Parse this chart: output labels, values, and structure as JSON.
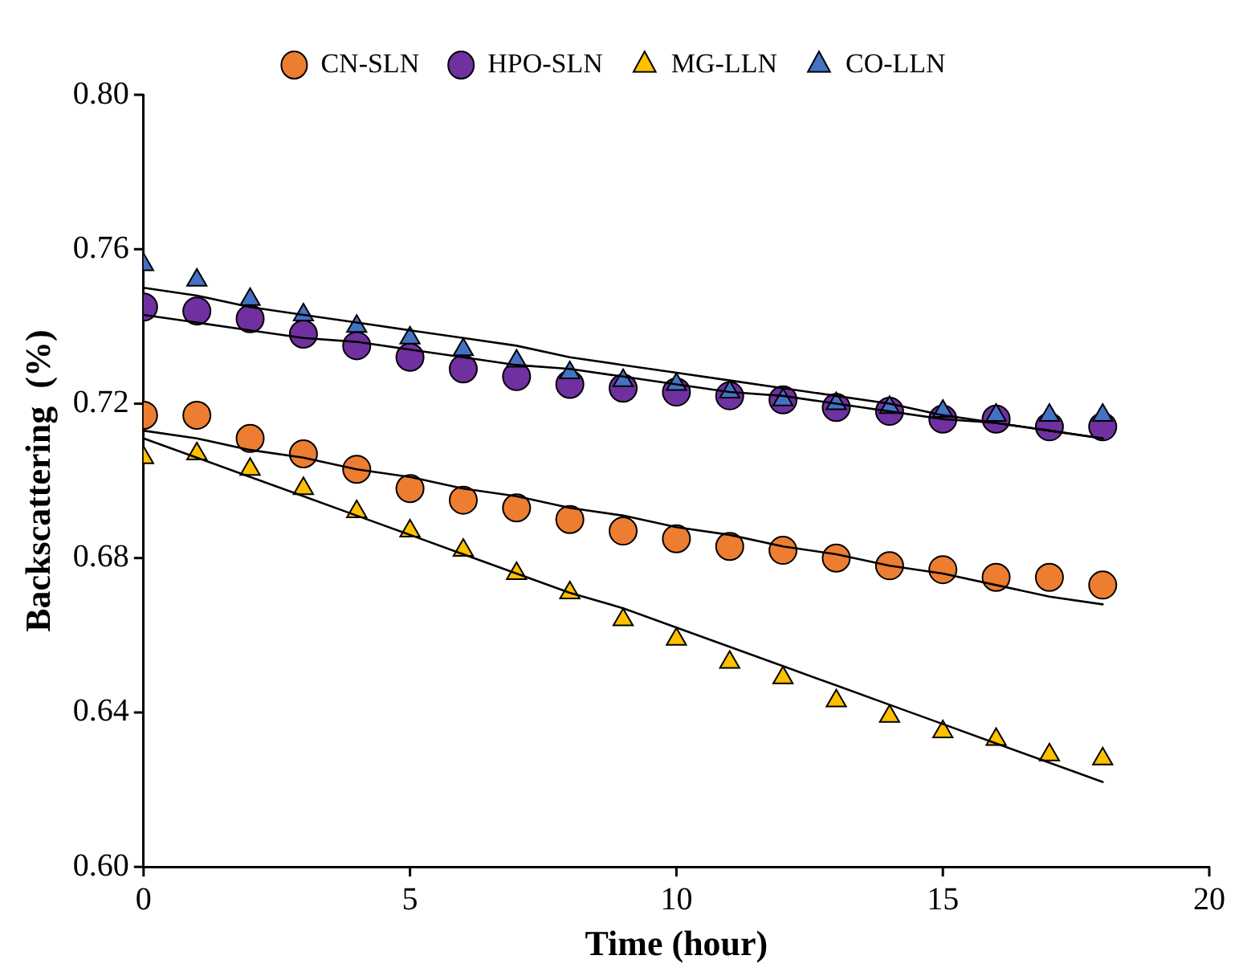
{
  "chart_data": {
    "type": "scatter",
    "xlabel": "Time (hour)",
    "ylabel": "Backscattering  (%)",
    "x": [
      0,
      1,
      2,
      3,
      4,
      5,
      6,
      7,
      8,
      9,
      10,
      11,
      12,
      13,
      14,
      15,
      16,
      17,
      18
    ],
    "xlim": [
      0,
      20
    ],
    "xticks": [
      0,
      5,
      10,
      15,
      20
    ],
    "ylim": [
      0.6,
      0.8
    ],
    "yticks": [
      {
        "value": 0.6,
        "label": "0.60"
      },
      {
        "value": 0.64,
        "label": "0.64"
      },
      {
        "value": 0.68,
        "label": "0.68"
      },
      {
        "value": 0.72,
        "label": "0.72"
      },
      {
        "value": 0.76,
        "label": "0.76"
      },
      {
        "value": 0.8,
        "label": "0.80"
      }
    ],
    "grid": false,
    "legend": "top",
    "series": [
      {
        "name": "CN-SLN",
        "color": "#ed7d31",
        "marker": "circle",
        "values": [
          0.717,
          0.717,
          0.711,
          0.707,
          0.703,
          0.698,
          0.695,
          0.693,
          0.69,
          0.687,
          0.685,
          0.683,
          0.682,
          0.68,
          0.678,
          0.677,
          0.675,
          0.675,
          0.673
        ]
      },
      {
        "name": "HPO-SLN",
        "color": "#7030a0",
        "marker": "circle",
        "values": [
          0.745,
          0.744,
          0.742,
          0.738,
          0.735,
          0.732,
          0.729,
          0.727,
          0.725,
          0.724,
          0.723,
          0.722,
          0.721,
          0.719,
          0.718,
          0.716,
          0.716,
          0.714,
          0.714
        ]
      },
      {
        "name": "MG-LLN",
        "color": "#ffc000",
        "marker": "triangle",
        "values": [
          0.706,
          0.707,
          0.703,
          0.698,
          0.692,
          0.687,
          0.682,
          0.676,
          0.671,
          0.664,
          0.659,
          0.653,
          0.649,
          0.643,
          0.639,
          0.635,
          0.633,
          0.629,
          0.628
        ]
      },
      {
        "name": "CO-LLN",
        "color": "#4472c4",
        "marker": "triangle",
        "values": [
          0.756,
          0.752,
          0.747,
          0.743,
          0.74,
          0.737,
          0.734,
          0.731,
          0.728,
          0.726,
          0.725,
          0.723,
          0.721,
          0.72,
          0.719,
          0.718,
          0.717,
          0.717,
          0.717
        ]
      },
      {
        "type": "line",
        "color": "#000000",
        "marker": "none",
        "values": [
          0.713,
          0.711,
          0.708,
          0.706,
          0.703,
          0.701,
          0.698,
          0.696,
          0.693,
          0.691,
          0.688,
          0.686,
          0.683,
          0.681,
          0.678,
          0.676,
          0.673,
          0.67,
          0.668
        ]
      },
      {
        "type": "line",
        "color": "#000000",
        "marker": "none",
        "values": [
          0.743,
          0.741,
          0.739,
          0.737,
          0.736,
          0.734,
          0.732,
          0.73,
          0.729,
          0.727,
          0.725,
          0.723,
          0.722,
          0.72,
          0.718,
          0.716,
          0.715,
          0.713,
          0.711
        ]
      },
      {
        "type": "line",
        "color": "#000000",
        "marker": "none",
        "values": [
          0.711,
          0.706,
          0.701,
          0.696,
          0.691,
          0.686,
          0.681,
          0.676,
          0.671,
          0.667,
          0.662,
          0.657,
          0.652,
          0.647,
          0.642,
          0.637,
          0.632,
          0.627,
          0.622
        ]
      },
      {
        "type": "line",
        "color": "#000000",
        "marker": "none",
        "values": [
          0.75,
          0.748,
          0.745,
          0.743,
          0.741,
          0.739,
          0.737,
          0.735,
          0.732,
          0.73,
          0.728,
          0.726,
          0.724,
          0.722,
          0.72,
          0.717,
          0.715,
          0.713,
          0.711
        ]
      }
    ]
  }
}
